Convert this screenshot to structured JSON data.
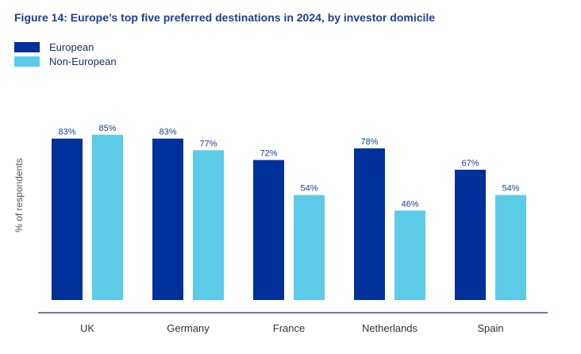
{
  "title": "Figure 14: Europe’s top five preferred destinations in 2024, by investor domicile",
  "colors": {
    "european": "#00309a",
    "non_european": "#5bcbe8",
    "axis": "#1c2e6b"
  },
  "legend": [
    {
      "label": "European",
      "color": "#00309a"
    },
    {
      "label": "Non-European",
      "color": "#5bcbe8"
    }
  ],
  "chart_data": {
    "type": "bar",
    "title": "Figure 14: Europe’s top five preferred destinations in 2024, by investor domicile",
    "xlabel": "",
    "ylabel": "% of respondents",
    "ylim": [
      0,
      100
    ],
    "grid": false,
    "legend_position": "top-left",
    "categories": [
      "UK",
      "Germany",
      "France",
      "Netherlands",
      "Spain"
    ],
    "series": [
      {
        "name": "European",
        "values": [
          83,
          83,
          72,
          78,
          67
        ],
        "labels": [
          "83%",
          "83%",
          "72%",
          "78%",
          "67%"
        ]
      },
      {
        "name": "Non-European",
        "values": [
          85,
          77,
          54,
          46,
          54
        ],
        "labels": [
          "85%",
          "77%",
          "54%",
          "46%",
          "54%"
        ]
      }
    ]
  }
}
